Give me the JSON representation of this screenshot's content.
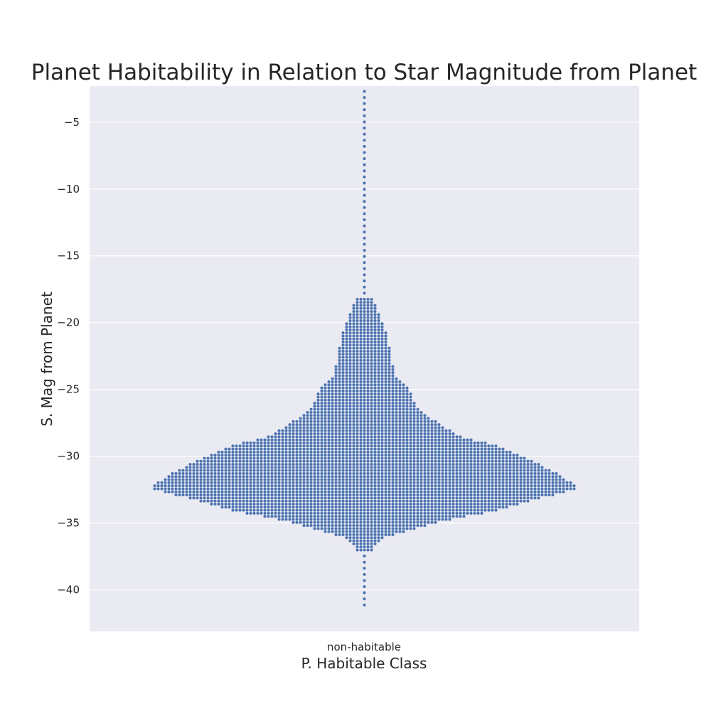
{
  "chart_data": {
    "type": "scatter",
    "subtype": "swarm",
    "title": "Planet Habitability in Relation to Star Magnitude from Planet",
    "xlabel": "P. Habitable Class",
    "ylabel": "S. Mag from Planet",
    "categories": [
      "non-habitable"
    ],
    "ylim": [
      -43.1,
      -2.3
    ],
    "yticks": [
      -5,
      -10,
      -15,
      -20,
      -25,
      -30,
      -35,
      -40
    ],
    "ytick_labels": [
      "−5",
      "−10",
      "−15",
      "−20",
      "−25",
      "−30",
      "−35",
      "−40"
    ],
    "grid": true,
    "marker_color": "#4c72b0",
    "background_color": "#eaeaf2",
    "distribution_width_profile": [
      [
        -2.7,
        0.5
      ],
      [
        -4.5,
        1
      ],
      [
        -7.7,
        1
      ],
      [
        -10.5,
        1
      ],
      [
        -13.5,
        1.5
      ],
      [
        -16.5,
        1
      ],
      [
        -18.4,
        2
      ],
      [
        -19.5,
        4
      ],
      [
        -21,
        6
      ],
      [
        -22.5,
        7
      ],
      [
        -24,
        8
      ],
      [
        -24.8,
        12
      ],
      [
        -26.3,
        14
      ],
      [
        -27.5,
        20
      ],
      [
        -28.5,
        26
      ],
      [
        -29.3,
        38
      ],
      [
        -30.5,
        48
      ],
      [
        -31.5,
        55
      ],
      [
        -32.4,
        60
      ],
      [
        -33.2,
        48
      ],
      [
        -34,
        38
      ],
      [
        -34.7,
        24
      ],
      [
        -35.4,
        14
      ],
      [
        -36.2,
        4
      ],
      [
        -36.8,
        2
      ],
      [
        -38,
        0.5
      ],
      [
        -40,
        0.5
      ],
      [
        -41.3,
        0.5
      ]
    ]
  }
}
